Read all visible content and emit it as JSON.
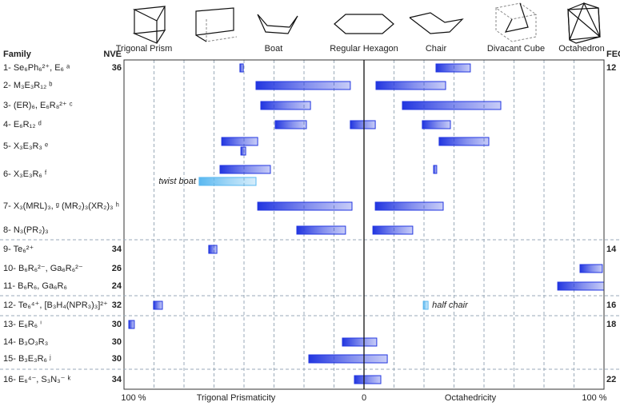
{
  "chart_data": {
    "type": "range-bar",
    "xlim": [
      -100,
      100
    ],
    "xticks": [
      {
        "value": -100,
        "label": "100 %"
      },
      0,
      {
        "value": 100,
        "label": "100 %"
      }
    ],
    "xgrid": [
      -87.5,
      -75,
      -62.5,
      -50,
      -37.5,
      -25,
      -12.5,
      12.5,
      25,
      37.5,
      50,
      62.5,
      75,
      87.5
    ],
    "xlabel_left": "Trigonal Prismaticity",
    "xlabel_right": "Octahedricity",
    "color": "#2236e0",
    "headers": {
      "family": "Family",
      "nve": "NVE",
      "fec": "FEC"
    },
    "shapes": [
      "Trigonal Prism",
      "Boat",
      "Regular Hexagon",
      "Chair",
      "Divacant Cube",
      "Octahedron"
    ],
    "rows": [
      {
        "family": "1- Se₆Ph₆²⁺, E₆ ᵃ",
        "nve": 36,
        "fec": 12,
        "bars": [
          {
            "start": -51.7,
            "end": -50.3
          },
          {
            "start": 30,
            "end": 44.3
          }
        ]
      },
      {
        "family": "2- M₃E₃R₁₂ ᵇ",
        "bars": [
          {
            "start": -45,
            "end": -5.7
          },
          {
            "start": 5,
            "end": 34
          }
        ]
      },
      {
        "family": "3- (ER)₆, E₆R₈²⁺ ᶜ",
        "bars": [
          {
            "start": -43,
            "end": -22.3
          },
          {
            "start": 16,
            "end": 57
          }
        ]
      },
      {
        "family": "4- E₆R₁₂ ᵈ",
        "bars": [
          {
            "start": -37,
            "end": -24
          },
          {
            "start": -5.7,
            "end": 4.7
          },
          {
            "start": 24.3,
            "end": 36
          }
        ]
      },
      {
        "family": "5- X₃E₃R₃ ᵉ",
        "bars": [
          {
            "start": -59.3,
            "end": -44.3
          },
          {
            "start": 31.3,
            "end": 52
          },
          {
            "start": -51.3,
            "end": -49.3
          }
        ]
      },
      {
        "family": "6- X₃E₃R₆ ᶠ",
        "bars": [
          {
            "start": -60,
            "end": -39
          },
          {
            "start": 29,
            "end": 30.3
          },
          {
            "start": -68.7,
            "end": -45,
            "color": "#5ab8f0",
            "label": "twist boat"
          }
        ]
      },
      {
        "family": "7- X₃(MRL)₃, ᵍ (MR₂)₃(XR₂)₃ ʰ",
        "bars": [
          {
            "start": -44.3,
            "end": -5
          },
          {
            "start": 4.7,
            "end": 33
          }
        ]
      },
      {
        "family": "8- N₃(PR₂)₃",
        "bars": [
          {
            "start": -28,
            "end": -7.7
          },
          {
            "start": 3.7,
            "end": 20.3
          }
        ]
      },
      {
        "family": "9- Te₆²⁺",
        "nve": 34,
        "fec": 14,
        "bars": [
          {
            "start": -64.7,
            "end": -61.3
          }
        ]
      },
      {
        "family": "10- B₆R₆²⁻, Ga₆R₆²⁻",
        "nve": 26,
        "bars": [
          {
            "start": 90,
            "end": 99.3
          }
        ]
      },
      {
        "family": "11- B₆R₆, Ga₆R₆",
        "nve": 24,
        "bars": [
          {
            "start": 80.7,
            "end": 100
          }
        ]
      },
      {
        "family": "12- Te₆⁴⁺, [B₃H₄(NPR₃)₃]²⁺",
        "nve": 32,
        "fec": 16,
        "bars": [
          {
            "start": -87.7,
            "end": -84
          },
          {
            "start": 24.7,
            "end": 26.7,
            "color": "#5ab8f0",
            "label": "half chair"
          }
        ]
      },
      {
        "family": "13- E₆R₆ ⁱ",
        "nve": 30,
        "fec": 18,
        "bars": [
          {
            "start": -98,
            "end": -95.7
          }
        ]
      },
      {
        "family": "14- B₃O₃R₃",
        "nve": 30,
        "bars": [
          {
            "start": -9,
            "end": 5.3
          }
        ]
      },
      {
        "family": "15- B₃E₃R₆ ʲ",
        "nve": 30,
        "bars": [
          {
            "start": -23,
            "end": 9.7
          }
        ]
      },
      {
        "family": "16- E₆⁴⁻, S₃N₃⁻ ᵏ",
        "nve": 34,
        "fec": 22,
        "bars": [
          {
            "start": -4,
            "end": 7
          }
        ]
      }
    ]
  }
}
